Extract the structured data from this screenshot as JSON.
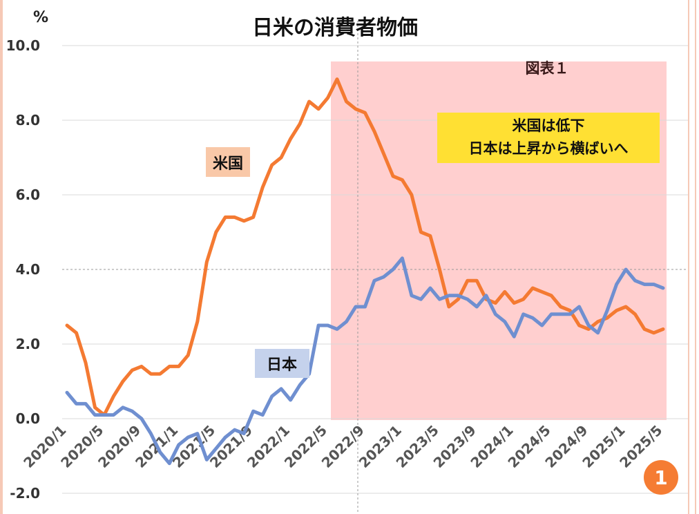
{
  "chart_data": {
    "type": "line",
    "title": "日米の消費者物価",
    "unit_label": "%",
    "figure_label": "図表１",
    "annotation": [
      "米国は低下",
      "日本は上昇から横ばいへ"
    ],
    "ylim": [
      -2,
      10
    ],
    "y_ticks": [
      "-2.0",
      "0.0",
      "2.0",
      "4.0",
      "6.0",
      "8.0",
      "10.0"
    ],
    "x_tick_labels": [
      "2020/1",
      "2020/5",
      "2020/9",
      "2021/1",
      "2021/5",
      "2021/9",
      "2022/1",
      "2022/5",
      "2022/9",
      "2023/1",
      "2023/5",
      "2023/9",
      "2024/1",
      "2024/5",
      "2024/9",
      "2025/1",
      "2025/5"
    ],
    "x_tick_every": 4,
    "series": [
      {
        "name": "米国",
        "color": "#f47a32",
        "label_bg": "#f9c8a8",
        "values": [
          2.5,
          2.3,
          1.5,
          0.3,
          0.1,
          0.6,
          1.0,
          1.3,
          1.4,
          1.2,
          1.2,
          1.4,
          1.4,
          1.7,
          2.6,
          4.2,
          5.0,
          5.4,
          5.4,
          5.3,
          5.4,
          6.2,
          6.8,
          7.0,
          7.5,
          7.9,
          8.5,
          8.3,
          8.6,
          9.1,
          8.5,
          8.3,
          8.2,
          7.7,
          7.1,
          6.5,
          6.4,
          6.0,
          5.0,
          4.9,
          4.0,
          3.0,
          3.2,
          3.7,
          3.7,
          3.2,
          3.1,
          3.4,
          3.1,
          3.2,
          3.5,
          3.4,
          3.3,
          3.0,
          2.9,
          2.5,
          2.4,
          2.6,
          2.7,
          2.9,
          3.0,
          2.8,
          2.4,
          2.3,
          2.4
        ]
      },
      {
        "name": "日本",
        "color": "#6f8fd0",
        "label_bg": "#c5d2ec",
        "values": [
          0.7,
          0.4,
          0.4,
          0.1,
          0.1,
          0.1,
          0.3,
          0.2,
          0.0,
          -0.4,
          -0.9,
          -1.2,
          -0.7,
          -0.5,
          -0.4,
          -1.1,
          -0.8,
          -0.5,
          -0.3,
          -0.4,
          0.2,
          0.1,
          0.6,
          0.8,
          0.5,
          0.9,
          1.2,
          2.5,
          2.5,
          2.4,
          2.6,
          3.0,
          3.0,
          3.7,
          3.8,
          4.0,
          4.3,
          3.3,
          3.2,
          3.5,
          3.2,
          3.3,
          3.3,
          3.2,
          3.0,
          3.3,
          2.8,
          2.6,
          2.2,
          2.8,
          2.7,
          2.5,
          2.8,
          2.8,
          2.8,
          3.0,
          2.5,
          2.3,
          2.9,
          3.6,
          4.0,
          3.7,
          3.6,
          3.6,
          3.5
        ]
      }
    ],
    "highlight_period": {
      "from": "2022/6",
      "to": "2025/5",
      "color": "#ffcfcf"
    }
  }
}
